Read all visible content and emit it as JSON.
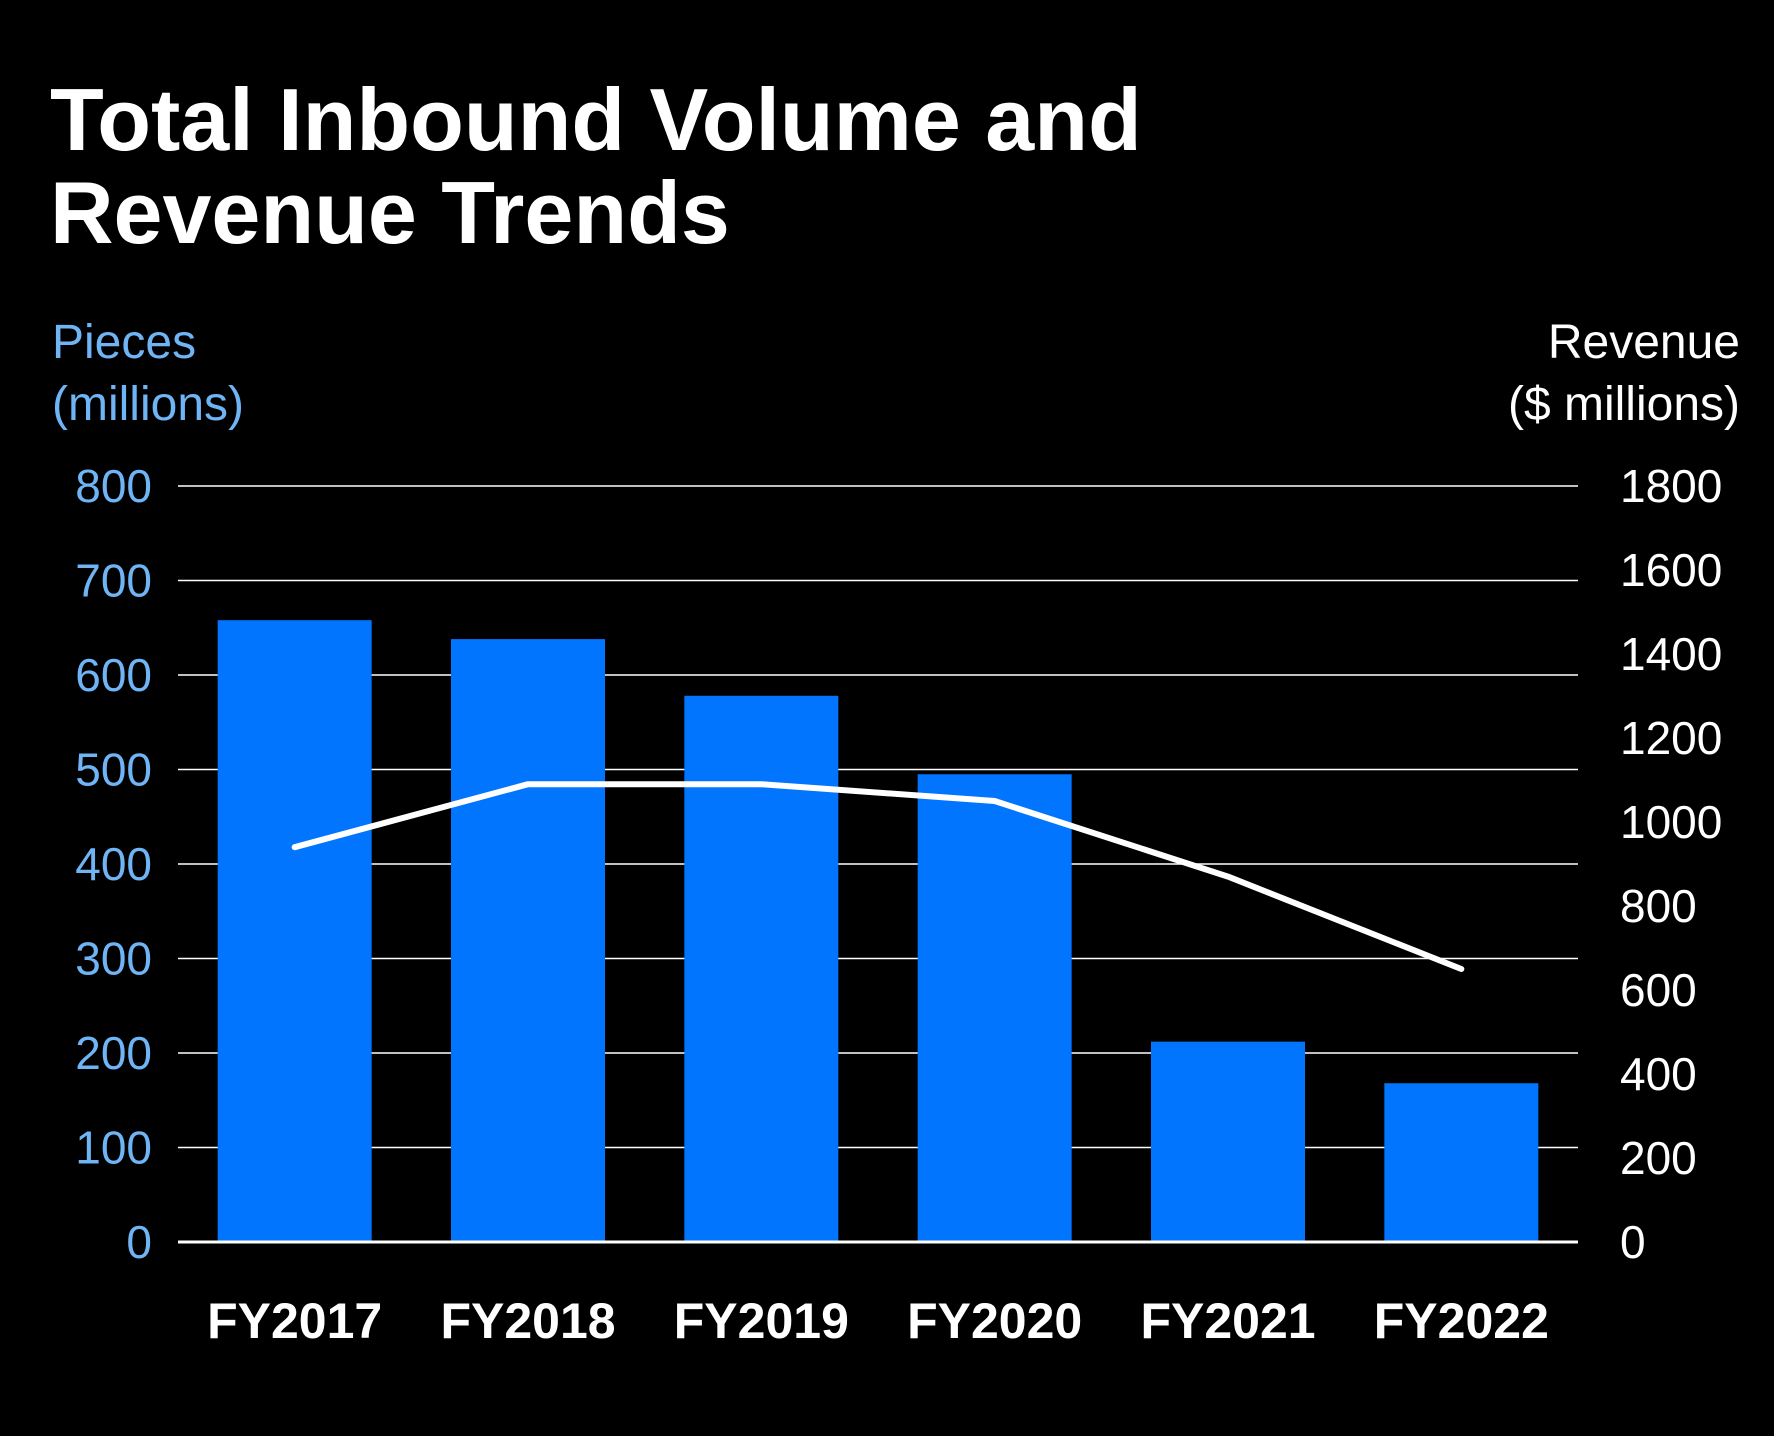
{
  "chart_data": {
    "type": "bar",
    "title": "Total Inbound Volume and Revenue Trends",
    "categories": [
      "FY2017",
      "FY2018",
      "FY2019",
      "FY2020",
      "FY2021",
      "FY2022"
    ],
    "series": [
      {
        "axis": "left",
        "type": "bar",
        "values": [
          658,
          638,
          578,
          495,
          212,
          168
        ]
      },
      {
        "axis": "right",
        "type": "line",
        "values": [
          940,
          1090,
          1090,
          1050,
          870,
          650
        ]
      }
    ],
    "y_left": {
      "label_line1": "Pieces",
      "label_line2": "(millions)",
      "range": [
        0,
        800
      ],
      "ticks": [
        0,
        100,
        200,
        300,
        400,
        500,
        600,
        700,
        800
      ]
    },
    "y_right": {
      "label_line1": "Revenue",
      "label_line2": "($ millions)",
      "range": [
        0,
        1800
      ],
      "ticks": [
        0,
        200,
        400,
        600,
        800,
        1000,
        1200,
        1400,
        1600,
        1800
      ]
    },
    "grid": true,
    "legend": "none"
  },
  "colors": {
    "background": "#000000",
    "bar": "#0275FF",
    "line": "#FFFFFF",
    "left_axis_text": "#6FB4F4",
    "right_axis_text": "#FFFFFF",
    "grid": "#FFFFFF"
  }
}
